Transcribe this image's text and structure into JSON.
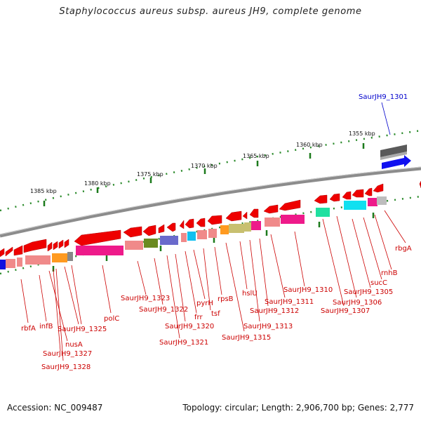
{
  "title": "Staphylococcus aureus subsp. aureus JH9, complete genome",
  "accession": "Accession: NC_009487",
  "topology": "Topology: circular; Length: 2,906,700 bp; Genes: 2,777",
  "scale_labels": [
    "1385 kbp",
    "1380 kbp",
    "1375 kbp",
    "1370 kbp",
    "1365 kbp",
    "1360 kbp",
    "1355 kbp"
  ],
  "gene_labels": {
    "rbfA": "rbfA",
    "infB": "infB",
    "nusA": "nusA",
    "s1325": "SaurJH9_1325",
    "s1327": "SaurJH9_1327",
    "s1328": "SaurJH9_1328",
    "polC": "polC",
    "s1323": "SaurJH9_1323",
    "s1322": "SaurJH9_1322",
    "s1320": "SaurJH9_1320",
    "s1321": "SaurJH9_1321",
    "frr": "frr",
    "pyrH": "pyrH",
    "tsf": "tsf",
    "rpsB": "rpsB",
    "hslU": "hslU",
    "s1315": "SaurJH9_1315",
    "s1313": "SaurJH9_1313",
    "s1312": "SaurJH9_1312",
    "s1311": "SaurJH9_1311",
    "s1310": "SaurJH9_1310",
    "s1307": "SaurJH9_1307",
    "s1306": "SaurJH9_1306",
    "s1305": "SaurJH9_1305",
    "sucC": "sucC",
    "rnhB": "rnhB",
    "rbgA": "rbgA",
    "s1301": "SaurJH9_1301"
  }
}
